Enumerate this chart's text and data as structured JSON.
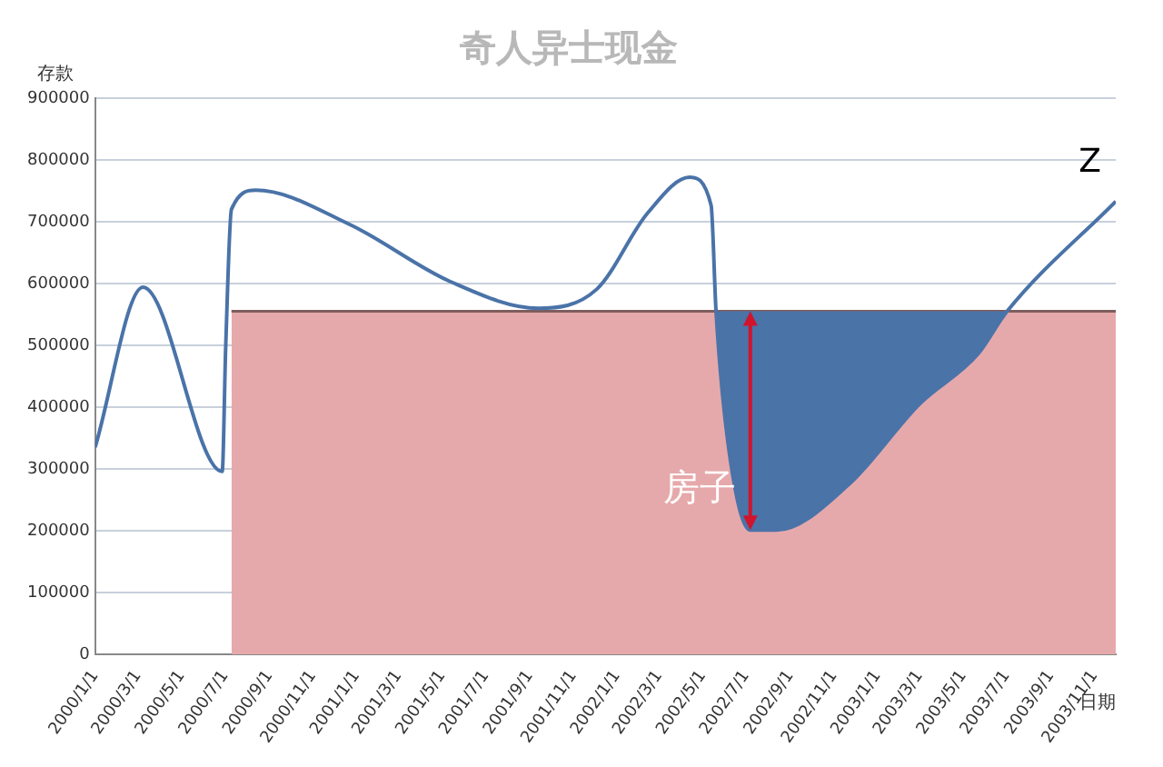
{
  "chart_data": {
    "type": "line",
    "title": "奇人异士现金",
    "xlabel": "日期",
    "ylabel": "存款",
    "xlim": [
      "2000-01-01",
      "2003-12-01"
    ],
    "xticks": [
      {
        "value": "2000-01-01",
        "label": "2000/1/1"
      },
      {
        "value": "2000-03-01",
        "label": "2000/3/1"
      },
      {
        "value": "2000-05-01",
        "label": "2000/5/1"
      },
      {
        "value": "2000-07-01",
        "label": "2000/7/1"
      },
      {
        "value": "2000-09-01",
        "label": "2000/9/1"
      },
      {
        "value": "2000-11-01",
        "label": "2000/11/1"
      },
      {
        "value": "2001-01-01",
        "label": "2001/1/1"
      },
      {
        "value": "2001-03-01",
        "label": "2001/3/1"
      },
      {
        "value": "2001-05-01",
        "label": "2001/5/1"
      },
      {
        "value": "2001-07-01",
        "label": "2001/7/1"
      },
      {
        "value": "2001-09-01",
        "label": "2001/9/1"
      },
      {
        "value": "2001-11-01",
        "label": "2001/11/1"
      },
      {
        "value": "2002-01-01",
        "label": "2002/1/1"
      },
      {
        "value": "2002-03-01",
        "label": "2002/3/1"
      },
      {
        "value": "2002-05-01",
        "label": "2002/5/1"
      },
      {
        "value": "2002-07-01",
        "label": "2002/7/1"
      },
      {
        "value": "2002-09-01",
        "label": "2002/9/1"
      },
      {
        "value": "2002-11-01",
        "label": "2002/11/1"
      },
      {
        "value": "2003-01-01",
        "label": "2003/1/1"
      },
      {
        "value": "2003-03-01",
        "label": "2003/3/1"
      },
      {
        "value": "2003-05-01",
        "label": "2003/5/1"
      },
      {
        "value": "2003-07-01",
        "label": "2003/7/1"
      },
      {
        "value": "2003-09-01",
        "label": "2003/9/1"
      },
      {
        "value": "2003-11-01",
        "label": "2003/11/1"
      }
    ],
    "ylim": [
      0,
      900000
    ],
    "yticks": [
      0,
      100000,
      200000,
      300000,
      400000,
      500000,
      600000,
      700000,
      800000,
      900000
    ],
    "grid": "y",
    "legend": false,
    "marker": "none",
    "line_style": "solid",
    "series": [
      {
        "type": "area",
        "color": "#e6a9ab",
        "x": [
          "2000-07-10",
          "2003-12-01"
        ],
        "values": [
          555000,
          555000
        ]
      },
      {
        "color": "#4a73a8",
        "lower": [
          null,
          null,
          null,
          null,
          null,
          null,
          null,
          null,
          null,
          null,
          null,
          null,
          null,
          554000,
          331000,
          201000,
          201000,
          275000,
          405000,
          486000,
          554000,
          null
        ],
        "upper": [
          null,
          null,
          null,
          null,
          null,
          null,
          null,
          null,
          null,
          null,
          null,
          null,
          null,
          555000,
          555000,
          555000,
          555000,
          555000,
          555000,
          555000,
          555000,
          null
        ],
        "x": [
          "2000-01-01",
          "2000-03-08",
          "2000-06-27",
          "2000-07-02",
          "2000-07-10",
          "2000-08-13",
          "2000-12-22",
          "2001-05-13",
          "2001-09-13",
          "2001-12-04",
          "2002-02-13",
          "2002-04-13",
          "2002-05-13",
          "2002-05-20",
          "2002-06-07",
          "2002-07-07",
          "2002-08-13",
          "2002-11-22",
          "2003-03-01",
          "2003-05-22",
          "2003-07-01",
          "2003-12-01"
        ],
        "values": [
          335000,
          594000,
          296000,
          500000,
          720000,
          751000,
          696000,
          603000,
          560000,
          591000,
          714000,
          772000,
          727000,
          554000,
          331000,
          201000,
          201000,
          275000,
          405000,
          486000,
          554000,
          733000
        ]
      }
    ],
    "annotations": [
      {
        "text": "房子",
        "x": "2002-07-07",
        "y": 201000
      },
      {
        "text": "Z",
        "x": "2003-12-01",
        "y": 733000
      }
    ]
  }
}
